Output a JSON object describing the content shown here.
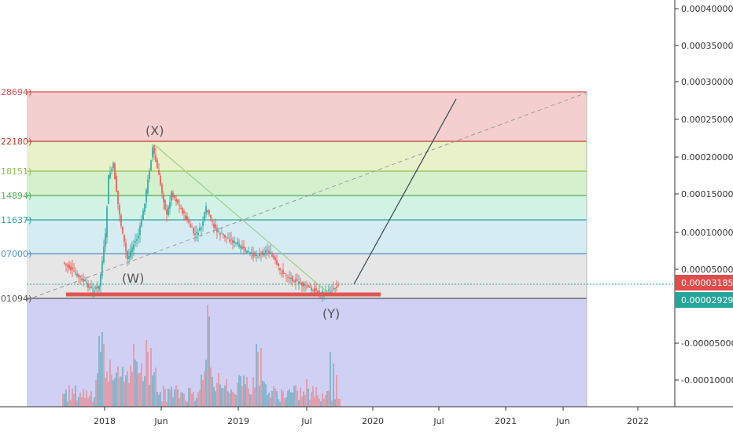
{
  "chart_data": {
    "type": "candlestick",
    "y_axis": {
      "ticks": [
        "0.00040000",
        "0.00035000",
        "0.00030000",
        "0.00025000",
        "0.00020000",
        "0.00015000",
        "0.00010000",
        "0.00005000",
        "-0.00005000",
        "-0.00010000"
      ],
      "range": [
        -0.000138,
        0.00042
      ]
    },
    "x_axis": {
      "ticks": [
        "2018",
        "Jun",
        "2019",
        "Jul",
        "2020",
        "Jul",
        "2021",
        "Jun",
        "2022"
      ]
    },
    "fib_levels": [
      {
        "label": "28694)",
        "value": 0.000287,
        "color": "#d94f4f"
      },
      {
        "label": "22180)",
        "value": 0.000222,
        "color": "#c0392b"
      },
      {
        "label": "18151)",
        "value": 0.000182,
        "color": "#8bc34a"
      },
      {
        "label": "14894)",
        "value": 0.000149,
        "color": "#4caf50"
      },
      {
        "label": "11637)",
        "value": 0.000116,
        "color": "#26a69a"
      },
      {
        "label": "07000)",
        "value": 7.1e-05,
        "color": "#4b8fc9"
      },
      {
        "label": "01094)",
        "value": 1.1e-05,
        "color": "#555555"
      }
    ],
    "price_tags": [
      {
        "label": "0.00003185",
        "value": 3.19e-05,
        "color": "#e04b4b"
      },
      {
        "label": "0.00002929",
        "value": 2.93e-05,
        "color": "#26a69a"
      }
    ],
    "wave_labels": [
      "(X)",
      "(W)",
      "(Y)"
    ],
    "colors": {
      "up": "#26a69a",
      "down": "#ef5350",
      "vol_up": "#7fb3c9",
      "vol_down": "#e19aa8"
    }
  }
}
